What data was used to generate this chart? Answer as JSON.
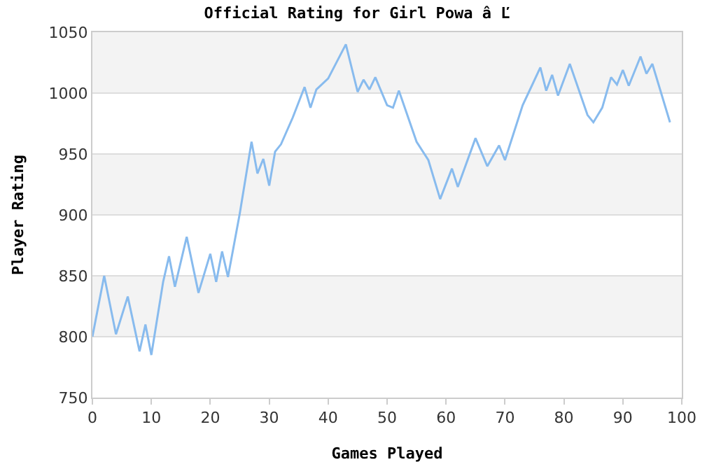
{
  "chart_data": {
    "type": "line",
    "title": "Official Rating for Girl Powa â Ľ",
    "xlabel": "Games Played",
    "ylabel": "Player Rating",
    "x": [
      0,
      2,
      4,
      6,
      8,
      9,
      10,
      12,
      13,
      14,
      16,
      18,
      20,
      21,
      22,
      23,
      25,
      27,
      28,
      29,
      30,
      31,
      32,
      34,
      36,
      37,
      38,
      40,
      43,
      45,
      46,
      47,
      48,
      50,
      51,
      52,
      55,
      57,
      59,
      61,
      62,
      65,
      67,
      69,
      70,
      73,
      76,
      77,
      78,
      79,
      81,
      84,
      85,
      86.5,
      88,
      89,
      90,
      91,
      93,
      94,
      95,
      98
    ],
    "series": [
      {
        "color": "#88bbee",
        "values": [
          800,
          850,
          802,
          833,
          788,
          810,
          785,
          845,
          866,
          841,
          882,
          836,
          868,
          845,
          870,
          849,
          901,
          960,
          934,
          946,
          924,
          952,
          958,
          980,
          1005,
          988,
          1003,
          1012,
          1040,
          1001,
          1011,
          1003,
          1013,
          990,
          988,
          1002,
          960,
          945,
          913,
          938,
          923,
          963,
          940,
          957,
          945,
          990,
          1021,
          1002,
          1015,
          998,
          1024,
          982,
          976,
          988,
          1013,
          1007,
          1019,
          1006,
          1030,
          1016,
          1024,
          976
        ]
      }
    ],
    "xlim": [
      0,
      100
    ],
    "xticks": [
      0,
      10,
      20,
      30,
      40,
      50,
      60,
      70,
      80,
      90,
      100
    ],
    "ylim": [
      750,
      1050
    ],
    "yticks": [
      750,
      800,
      850,
      900,
      950,
      1000,
      1050
    ],
    "grid": "y",
    "marker": "none",
    "line_style": "solid",
    "bands": [
      {
        "axis": "y",
        "from": 800,
        "to": 850,
        "color": "#f3f3f3"
      },
      {
        "axis": "y",
        "from": 900,
        "to": 950,
        "color": "#f3f3f3"
      },
      {
        "axis": "y",
        "from": 1000,
        "to": 1050,
        "color": "#f3f3f3"
      }
    ]
  }
}
